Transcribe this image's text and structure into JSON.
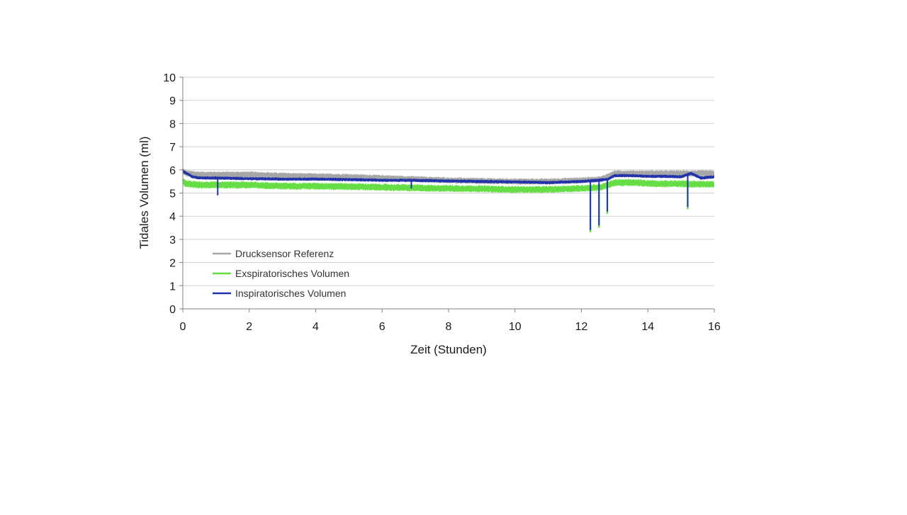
{
  "chart_data": {
    "type": "line",
    "title": "",
    "xlabel": "Zeit (Stunden)",
    "ylabel": "Tidales Volumen (ml)",
    "xlim": [
      0,
      16
    ],
    "ylim": [
      0,
      10
    ],
    "xticks": [
      0,
      2,
      4,
      6,
      8,
      10,
      12,
      14,
      16
    ],
    "yticks": [
      0,
      1,
      2,
      3,
      4,
      5,
      6,
      7,
      8,
      9,
      10
    ],
    "grid": "horizontal",
    "legend_position": "bottom-left",
    "series": [
      {
        "name": "Drucksensor Referenz",
        "color": "#a6a6a6",
        "band_width": 0.28,
        "x": [
          0,
          0.1,
          0.5,
          1,
          2,
          3,
          4,
          5,
          6,
          7,
          8,
          9,
          10,
          11,
          12,
          12.6,
          13,
          13.5,
          14,
          14.5,
          15,
          15.5,
          16
        ],
        "y": [
          5.95,
          5.85,
          5.8,
          5.8,
          5.8,
          5.75,
          5.72,
          5.7,
          5.65,
          5.6,
          5.55,
          5.52,
          5.5,
          5.5,
          5.55,
          5.6,
          5.85,
          5.85,
          5.85,
          5.85,
          5.85,
          5.85,
          5.85
        ]
      },
      {
        "name": "Exspiratorisches Volumen",
        "color": "#66dd44",
        "band_width": 0.32,
        "x": [
          0,
          0.1,
          0.5,
          1,
          2,
          3,
          4,
          5,
          6,
          7,
          8,
          9,
          10,
          11,
          12,
          12.6,
          13,
          13.5,
          14,
          14.5,
          15,
          15.5,
          16
        ],
        "y": [
          5.5,
          5.4,
          5.35,
          5.35,
          5.35,
          5.3,
          5.3,
          5.28,
          5.25,
          5.22,
          5.2,
          5.18,
          5.15,
          5.15,
          5.2,
          5.25,
          5.45,
          5.45,
          5.42,
          5.4,
          5.4,
          5.38,
          5.38
        ],
        "dips": [
          {
            "x": 12.27,
            "y": 3.3
          },
          {
            "x": 12.53,
            "y": 3.5
          },
          {
            "x": 12.78,
            "y": 4.1
          },
          {
            "x": 15.2,
            "y": 4.3
          }
        ]
      },
      {
        "name": "Inspiratorisches Volumen",
        "color": "#2233aa",
        "band_width": 0.15,
        "x": [
          0,
          0.05,
          0.3,
          0.5,
          1,
          2,
          3,
          4,
          5,
          6,
          7,
          8,
          9,
          10,
          11,
          12,
          12.5,
          12.8,
          13,
          13.5,
          14,
          14.5,
          15,
          15.3,
          15.6,
          16
        ],
        "y": [
          5.95,
          5.9,
          5.7,
          5.65,
          5.65,
          5.62,
          5.6,
          5.6,
          5.58,
          5.55,
          5.55,
          5.52,
          5.5,
          5.48,
          5.45,
          5.5,
          5.55,
          5.6,
          5.75,
          5.75,
          5.72,
          5.72,
          5.7,
          5.85,
          5.65,
          5.7
        ],
        "dips": [
          {
            "x": 1.05,
            "y": 4.9
          },
          {
            "x": 6.88,
            "y": 5.2
          },
          {
            "x": 12.27,
            "y": 3.4
          },
          {
            "x": 12.53,
            "y": 3.6
          },
          {
            "x": 12.78,
            "y": 4.2
          },
          {
            "x": 15.2,
            "y": 4.4
          }
        ]
      }
    ]
  }
}
